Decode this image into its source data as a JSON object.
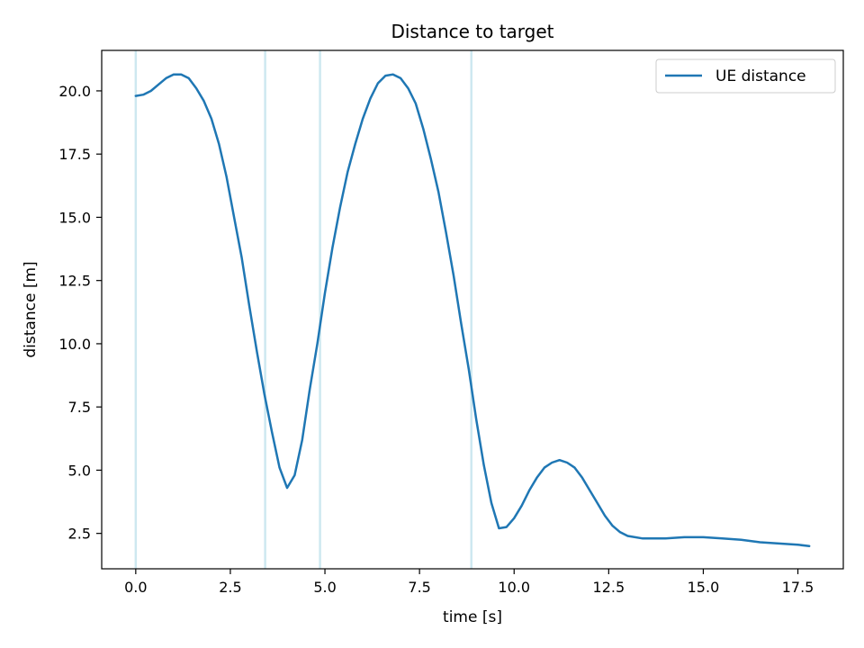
{
  "chart_data": {
    "type": "line",
    "title": "Distance to target",
    "xlabel": "time [s]",
    "ylabel": "distance [m]",
    "xlim": [
      -0.9,
      18.7
    ],
    "ylim": [
      1.1,
      21.6
    ],
    "xticks": [
      0.0,
      2.5,
      5.0,
      7.5,
      10.0,
      12.5,
      15.0,
      17.5
    ],
    "xtick_labels": [
      "0.0",
      "2.5",
      "5.0",
      "7.5",
      "10.0",
      "12.5",
      "15.0",
      "17.5"
    ],
    "yticks": [
      2.5,
      5.0,
      7.5,
      10.0,
      12.5,
      15.0,
      17.5,
      20.0
    ],
    "ytick_labels": [
      "2.5",
      "5.0",
      "7.5",
      "10.0",
      "12.5",
      "15.0",
      "17.5",
      "20.0"
    ],
    "grid": false,
    "legend_position": "top-right",
    "vertical_lines": {
      "x": [
        0.0,
        3.42,
        4.87,
        8.87
      ],
      "color": "#add8e6"
    },
    "series": [
      {
        "name": "UE distance",
        "color": "#1f77b4",
        "points": [
          [
            0.0,
            19.8
          ],
          [
            0.2,
            19.85
          ],
          [
            0.4,
            20.0
          ],
          [
            0.6,
            20.25
          ],
          [
            0.8,
            20.5
          ],
          [
            1.0,
            20.65
          ],
          [
            1.2,
            20.65
          ],
          [
            1.4,
            20.5
          ],
          [
            1.6,
            20.1
          ],
          [
            1.8,
            19.6
          ],
          [
            2.0,
            18.9
          ],
          [
            2.2,
            17.9
          ],
          [
            2.4,
            16.6
          ],
          [
            2.6,
            15.0
          ],
          [
            2.8,
            13.4
          ],
          [
            3.0,
            11.5
          ],
          [
            3.2,
            9.7
          ],
          [
            3.4,
            8.0
          ],
          [
            3.6,
            6.5
          ],
          [
            3.8,
            5.1
          ],
          [
            4.0,
            4.3
          ],
          [
            4.2,
            4.8
          ],
          [
            4.4,
            6.2
          ],
          [
            4.6,
            8.2
          ],
          [
            4.8,
            10.0
          ],
          [
            5.0,
            12.0
          ],
          [
            5.2,
            13.8
          ],
          [
            5.4,
            15.4
          ],
          [
            5.6,
            16.8
          ],
          [
            5.8,
            17.9
          ],
          [
            6.0,
            18.9
          ],
          [
            6.2,
            19.7
          ],
          [
            6.4,
            20.3
          ],
          [
            6.6,
            20.6
          ],
          [
            6.8,
            20.65
          ],
          [
            7.0,
            20.5
          ],
          [
            7.2,
            20.1
          ],
          [
            7.4,
            19.5
          ],
          [
            7.6,
            18.5
          ],
          [
            7.8,
            17.3
          ],
          [
            8.0,
            16.0
          ],
          [
            8.2,
            14.4
          ],
          [
            8.4,
            12.7
          ],
          [
            8.6,
            10.8
          ],
          [
            8.8,
            9.0
          ],
          [
            9.0,
            7.0
          ],
          [
            9.2,
            5.2
          ],
          [
            9.4,
            3.7
          ],
          [
            9.6,
            2.7
          ],
          [
            9.8,
            2.75
          ],
          [
            10.0,
            3.1
          ],
          [
            10.2,
            3.6
          ],
          [
            10.4,
            4.2
          ],
          [
            10.6,
            4.7
          ],
          [
            10.8,
            5.1
          ],
          [
            11.0,
            5.3
          ],
          [
            11.2,
            5.4
          ],
          [
            11.4,
            5.3
          ],
          [
            11.6,
            5.1
          ],
          [
            11.8,
            4.7
          ],
          [
            12.0,
            4.2
          ],
          [
            12.2,
            3.7
          ],
          [
            12.4,
            3.2
          ],
          [
            12.6,
            2.8
          ],
          [
            12.8,
            2.55
          ],
          [
            13.0,
            2.4
          ],
          [
            13.4,
            2.3
          ],
          [
            14.0,
            2.3
          ],
          [
            14.5,
            2.35
          ],
          [
            15.0,
            2.35
          ],
          [
            15.5,
            2.3
          ],
          [
            16.0,
            2.25
          ],
          [
            16.5,
            2.15
          ],
          [
            17.0,
            2.1
          ],
          [
            17.5,
            2.05
          ],
          [
            17.8,
            2.0
          ]
        ]
      }
    ]
  }
}
